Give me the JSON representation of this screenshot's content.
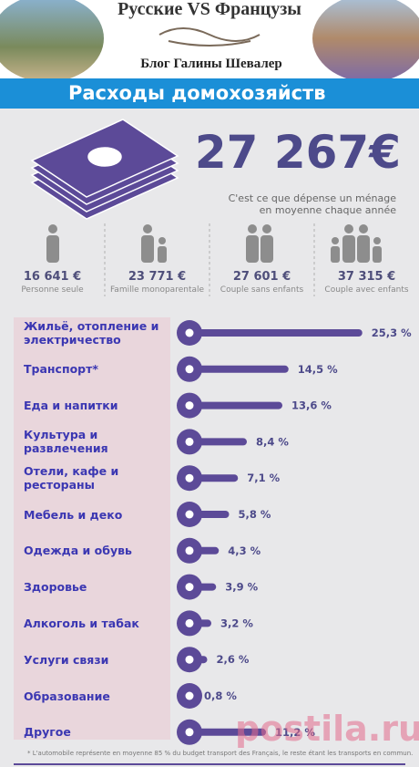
{
  "header": {
    "title": "Русские VS Французы",
    "subtitle": "Блог Галины Шевалер",
    "banner": "Расходы домохозяйств"
  },
  "summary": {
    "amount": "27 267€",
    "caption_1": "C'est ce que dépense un ménage",
    "caption_2": "en moyenne chaque année"
  },
  "households": [
    {
      "amount": "16 641 €",
      "label": "Personne seule"
    },
    {
      "amount": "23 771 €",
      "label": "Famille monoparentale"
    },
    {
      "amount": "27 601 €",
      "label": "Couple sans enfants"
    },
    {
      "amount": "37 315 €",
      "label": "Couple avec enfants"
    }
  ],
  "chart_data": {
    "type": "bar",
    "orientation": "horizontal",
    "categories": [
      "Жильё, отопление и электричество",
      "Транспорт*",
      "Еда и напитки",
      "Культура и развлечения",
      "Отели, кафе и рестораны",
      "Мебель и деко",
      "Одежда и обувь",
      "Здоровье",
      "Алкоголь и табак",
      "Услуги связи",
      "Образование",
      "Другое"
    ],
    "values": [
      25.3,
      14.5,
      13.6,
      8.4,
      7.1,
      5.8,
      4.3,
      3.9,
      3.2,
      2.6,
      0.8,
      11.2
    ],
    "value_labels": [
      "25,3 %",
      "14,5 %",
      "13,6 %",
      "8,4 %",
      "7,1 %",
      "5,8 %",
      "4,3 %",
      "3,9 %",
      "3,2 %",
      "2,6 %",
      "0,8 %",
      "11,2 %"
    ],
    "color": "#5c4a98"
  },
  "footnote": "* L'automobile représente en moyenne 85 % du budget transport des Français, le reste étant les transports en commun.",
  "watermark": "postila.ru"
}
